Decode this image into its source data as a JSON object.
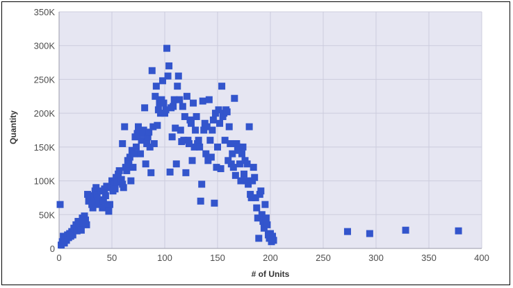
{
  "chart_data": {
    "type": "scatter",
    "title": "",
    "xlabel": "# of Units",
    "ylabel": "Quantity",
    "xlim": [
      0,
      400
    ],
    "ylim": [
      0,
      350000
    ],
    "x_ticks": [
      0,
      50,
      100,
      150,
      200,
      250,
      300,
      350,
      400
    ],
    "x_tick_labels": [
      "0",
      "50",
      "100",
      "150",
      "200",
      "250",
      "300",
      "350",
      "400"
    ],
    "y_ticks": [
      0,
      50000,
      100000,
      150000,
      200000,
      250000,
      300000,
      350000
    ],
    "y_tick_labels": [
      "0",
      "50K",
      "100K",
      "150K",
      "200K",
      "250K",
      "300K",
      "350K"
    ],
    "grid": true,
    "legend": "none",
    "colors": {
      "marker": "#3355cc",
      "plot_background": "#e6e6f2",
      "grid": "#ccccdd",
      "frame": "#000000"
    },
    "series": [
      {
        "points": [
          [
            1,
            65000
          ],
          [
            2,
            5000
          ],
          [
            3,
            10000
          ],
          [
            4,
            18000
          ],
          [
            5,
            8000
          ],
          [
            6,
            15000
          ],
          [
            7,
            12000
          ],
          [
            8,
            20000
          ],
          [
            9,
            16000
          ],
          [
            10,
            22000
          ],
          [
            11,
            18000
          ],
          [
            12,
            25000
          ],
          [
            13,
            20000
          ],
          [
            14,
            30000
          ],
          [
            15,
            28000
          ],
          [
            16,
            35000
          ],
          [
            17,
            26000
          ],
          [
            18,
            40000
          ],
          [
            19,
            32000
          ],
          [
            20,
            30000
          ],
          [
            21,
            27000
          ],
          [
            22,
            45000
          ],
          [
            23,
            38000
          ],
          [
            24,
            48000
          ],
          [
            25,
            42000
          ],
          [
            26,
            35000
          ],
          [
            27,
            80000
          ],
          [
            28,
            70000
          ],
          [
            29,
            78000
          ],
          [
            30,
            72000
          ],
          [
            31,
            65000
          ],
          [
            32,
            60000
          ],
          [
            33,
            75000
          ],
          [
            34,
            85000
          ],
          [
            35,
            90000
          ],
          [
            36,
            80000
          ],
          [
            37,
            70000
          ],
          [
            38,
            65000
          ],
          [
            39,
            72000
          ],
          [
            40,
            85000
          ],
          [
            41,
            60000
          ],
          [
            42,
            70000
          ],
          [
            43,
            88000
          ],
          [
            44,
            78000
          ],
          [
            45,
            92000
          ],
          [
            46,
            62000
          ],
          [
            47,
            55000
          ],
          [
            48,
            65000
          ],
          [
            49,
            90000
          ],
          [
            50,
            100000
          ],
          [
            51,
            85000
          ],
          [
            52,
            95000
          ],
          [
            53,
            88000
          ],
          [
            54,
            105000
          ],
          [
            55,
            98000
          ],
          [
            56,
            110000
          ],
          [
            57,
            115000
          ],
          [
            58,
            100000
          ],
          [
            59,
            102000
          ],
          [
            60,
            95000
          ],
          [
            60,
            155000
          ],
          [
            61,
            90000
          ],
          [
            62,
            180000
          ],
          [
            63,
            120000
          ],
          [
            64,
            115000
          ],
          [
            65,
            130000
          ],
          [
            66,
            125000
          ],
          [
            67,
            135000
          ],
          [
            68,
            100000
          ],
          [
            69,
            145000
          ],
          [
            70,
            120000
          ],
          [
            71,
            140000
          ],
          [
            72,
            165000
          ],
          [
            73,
            150000
          ],
          [
            74,
            170000
          ],
          [
            75,
            180000
          ],
          [
            76,
            175000
          ],
          [
            77,
            140000
          ],
          [
            78,
            160000
          ],
          [
            79,
            170000
          ],
          [
            80,
            175000
          ],
          [
            81,
            208000
          ],
          [
            82,
            125000
          ],
          [
            83,
            155000
          ],
          [
            84,
            165000
          ],
          [
            85,
            172000
          ],
          [
            86,
            150000
          ],
          [
            87,
            112000
          ],
          [
            88,
            263000
          ],
          [
            89,
            180000
          ],
          [
            90,
            155000
          ],
          [
            91,
            225000
          ],
          [
            92,
            240000
          ],
          [
            93,
            182000
          ],
          [
            94,
            205000
          ],
          [
            95,
            215000
          ],
          [
            96,
            200000
          ],
          [
            97,
            220000
          ],
          [
            98,
            248000
          ],
          [
            99,
            215000
          ],
          [
            100,
            200000
          ],
          [
            101,
            205000
          ],
          [
            102,
            296000
          ],
          [
            103,
            255000
          ],
          [
            104,
            270000
          ],
          [
            105,
            113000
          ],
          [
            106,
            208000
          ],
          [
            107,
            165000
          ],
          [
            108,
            210000
          ],
          [
            109,
            220000
          ],
          [
            110,
            178000
          ],
          [
            111,
            125000
          ],
          [
            112,
            240000
          ],
          [
            113,
            255000
          ],
          [
            114,
            220000
          ],
          [
            115,
            175000
          ],
          [
            116,
            158000
          ],
          [
            117,
            210000
          ],
          [
            118,
            160000
          ],
          [
            119,
            195000
          ],
          [
            120,
            112000
          ],
          [
            121,
            225000
          ],
          [
            122,
            160000
          ],
          [
            123,
            155000
          ],
          [
            124,
            190000
          ],
          [
            125,
            185000
          ],
          [
            126,
            130000
          ],
          [
            127,
            215000
          ],
          [
            128,
            150000
          ],
          [
            129,
            175000
          ],
          [
            130,
            195000
          ],
          [
            131,
            155000
          ],
          [
            132,
            160000
          ],
          [
            133,
            150000
          ],
          [
            134,
            70000
          ],
          [
            135,
            95000
          ],
          [
            136,
            218000
          ],
          [
            137,
            175000
          ],
          [
            138,
            185000
          ],
          [
            139,
            140000
          ],
          [
            140,
            180000
          ],
          [
            141,
            130000
          ],
          [
            142,
            220000
          ],
          [
            143,
            160000
          ],
          [
            144,
            135000
          ],
          [
            145,
            175000
          ],
          [
            146,
            190000
          ],
          [
            147,
            67000
          ],
          [
            148,
            200000
          ],
          [
            149,
            120000
          ],
          [
            150,
            150000
          ],
          [
            151,
            205000
          ],
          [
            152,
            185000
          ],
          [
            153,
            118000
          ],
          [
            154,
            240000
          ],
          [
            155,
            195000
          ],
          [
            156,
            200000
          ],
          [
            157,
            160000
          ],
          [
            158,
            205000
          ],
          [
            159,
            202000
          ],
          [
            160,
            130000
          ],
          [
            161,
            180000
          ],
          [
            162,
            155000
          ],
          [
            163,
            125000
          ],
          [
            164,
            140000
          ],
          [
            165,
            120000
          ],
          [
            166,
            222000
          ],
          [
            167,
            108000
          ],
          [
            168,
            155000
          ],
          [
            169,
            150000
          ],
          [
            170,
            145000
          ],
          [
            171,
            125000
          ],
          [
            172,
            100000
          ],
          [
            173,
            140000
          ],
          [
            174,
            150000
          ],
          [
            175,
            110000
          ],
          [
            176,
            130000
          ],
          [
            177,
            100000
          ],
          [
            178,
            125000
          ],
          [
            179,
            95000
          ],
          [
            180,
            180000
          ],
          [
            181,
            80000
          ],
          [
            182,
            75000
          ],
          [
            183,
            100000
          ],
          [
            184,
            120000
          ],
          [
            185,
            105000
          ],
          [
            186,
            75000
          ],
          [
            187,
            60000
          ],
          [
            188,
            45000
          ],
          [
            189,
            15000
          ],
          [
            190,
            80000
          ],
          [
            191,
            85000
          ],
          [
            192,
            50000
          ],
          [
            193,
            40000
          ],
          [
            194,
            30000
          ],
          [
            195,
            65000
          ],
          [
            196,
            45000
          ],
          [
            197,
            35000
          ],
          [
            198,
            20000
          ],
          [
            199,
            15000
          ],
          [
            200,
            22000
          ],
          [
            201,
            10000
          ],
          [
            202,
            18000
          ],
          [
            203,
            12000
          ],
          [
            273,
            25000
          ],
          [
            294,
            22000
          ],
          [
            328,
            27000
          ],
          [
            378,
            26000
          ]
        ]
      }
    ]
  }
}
